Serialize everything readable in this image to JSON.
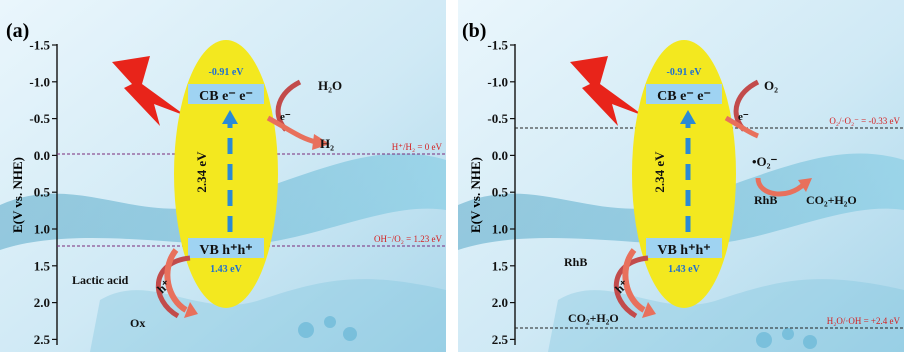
{
  "panels": [
    {
      "label": "(a)",
      "y_axis_label": "E(V vs. NHE)",
      "y_ticks": [
        "-1.5",
        "-1.0",
        "-0.5",
        "0.0",
        "0.5",
        "1.0",
        "1.5",
        "2.0",
        "2.5"
      ],
      "cb_potential": "-0.91 eV",
      "cb_text": "CB e⁻ e⁻",
      "vb_text": "VB h⁺h⁺",
      "vb_potential": "1.43 eV",
      "band_gap": "2.34 eV",
      "ref_lines": [
        {
          "text": "H⁺/H₂ = 0 eV",
          "potential": 0.0
        },
        {
          "text": "OH⁻/O₂ = 1.23 eV",
          "potential": 1.23
        }
      ],
      "top_right": {
        "species_in": "H₂O",
        "carrier": "e⁻",
        "product": "H₂"
      },
      "bottom_left": {
        "species_in": "Lactic acid",
        "carrier": "h⁺",
        "product": "Ox"
      }
    },
    {
      "label": "(b)",
      "y_axis_label": "E(V vs. NHE)",
      "y_ticks": [
        "-1.5",
        "-1.0",
        "-0.5",
        "0.0",
        "0.5",
        "1.0",
        "1.5",
        "2.0",
        "2.5"
      ],
      "cb_potential": "-0.91 eV",
      "cb_text": "CB e⁻ e⁻",
      "vb_text": "VB h⁺h⁺",
      "vb_potential": "1.43 eV",
      "band_gap": "2.34 eV",
      "ref_lines": [
        {
          "text": "O₂/·O₂⁻ = -0.33 eV",
          "potential": -0.33
        },
        {
          "text": "H₂O/·OH = +2.4 eV",
          "potential": 2.4
        }
      ],
      "top_right": {
        "species_in": "O₂",
        "carrier": "e⁻",
        "radical": "•O₂⁻",
        "reactant": "RhB",
        "product": "CO₂+H₂O"
      },
      "bottom_left": {
        "species_in": "RhB",
        "carrier": "h⁺",
        "product": "CO₂+H₂O"
      }
    }
  ],
  "colors": {
    "ellipse": "#f3e81f",
    "band_box": "#9fd3f2",
    "band_text_blue": "#1e6fd1",
    "ref_line": "#7a2a7a",
    "ref_text": "#d42020",
    "arrow": "#e8705c",
    "lightning": "#e8241a"
  }
}
